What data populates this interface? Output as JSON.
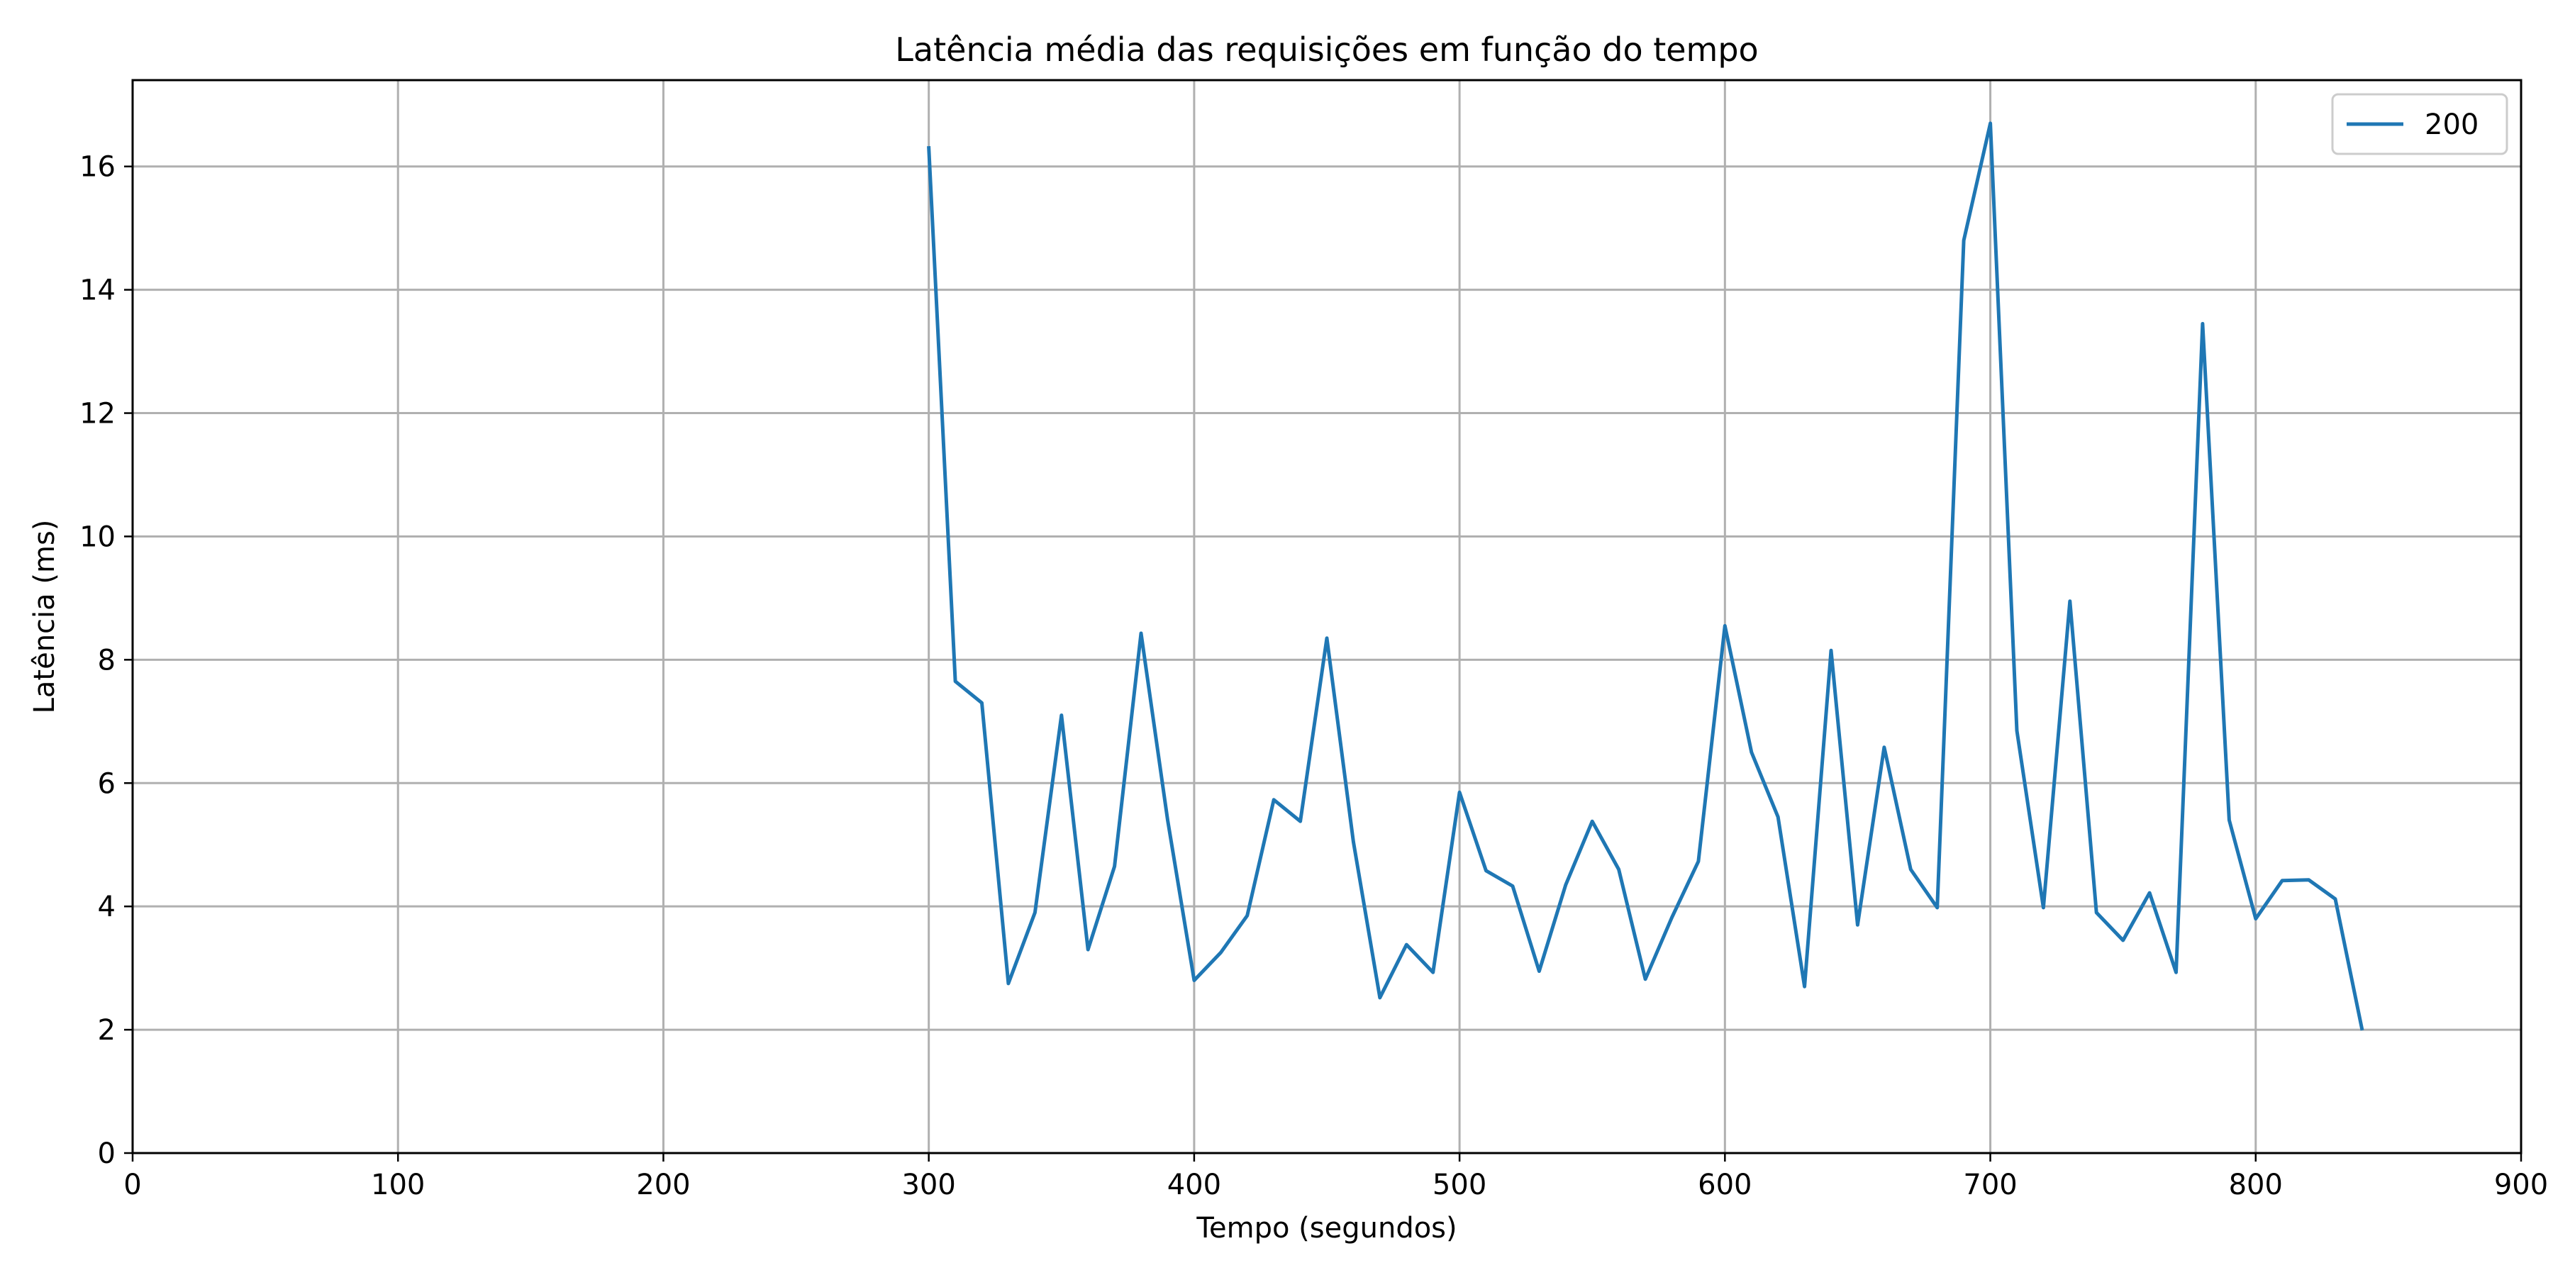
{
  "chart_data": {
    "type": "line",
    "title": "Latência média das requisições em função do tempo",
    "xlabel": "Tempo (segundos)",
    "ylabel": "Latência (ms)",
    "xlim": [
      0,
      900
    ],
    "ylim": [
      0,
      17.4
    ],
    "xticks": [
      0,
      100,
      200,
      300,
      400,
      500,
      600,
      700,
      800,
      900
    ],
    "yticks": [
      0,
      2,
      4,
      6,
      8,
      10,
      12,
      14,
      16
    ],
    "grid": true,
    "legend_position": "top-right",
    "series": [
      {
        "name": "200",
        "color": "#1f77b4",
        "x": [
          300,
          310,
          320,
          330,
          340,
          350,
          360,
          370,
          380,
          390,
          400,
          410,
          420,
          430,
          440,
          450,
          460,
          470,
          480,
          490,
          500,
          510,
          520,
          530,
          540,
          550,
          560,
          570,
          580,
          590,
          600,
          610,
          620,
          630,
          640,
          650,
          660,
          670,
          680,
          690,
          700,
          710,
          720,
          730,
          740,
          750,
          760,
          770,
          780,
          790,
          800,
          810,
          820,
          830,
          840
        ],
        "y": [
          16.3,
          7.65,
          7.3,
          2.75,
          3.9,
          7.1,
          3.3,
          4.65,
          8.43,
          5.4,
          2.8,
          3.25,
          3.85,
          5.73,
          5.38,
          8.35,
          5.05,
          2.52,
          3.38,
          2.93,
          5.85,
          4.58,
          4.33,
          2.95,
          4.35,
          5.38,
          4.6,
          2.82,
          3.82,
          4.73,
          8.55,
          6.5,
          5.45,
          2.7,
          8.15,
          3.7,
          6.58,
          4.6,
          3.98,
          14.8,
          16.7,
          6.85,
          3.98,
          8.95,
          3.9,
          3.45,
          4.22,
          2.93,
          13.45,
          5.4,
          3.8,
          4.42,
          4.43,
          4.12,
          2.02
        ]
      }
    ]
  }
}
